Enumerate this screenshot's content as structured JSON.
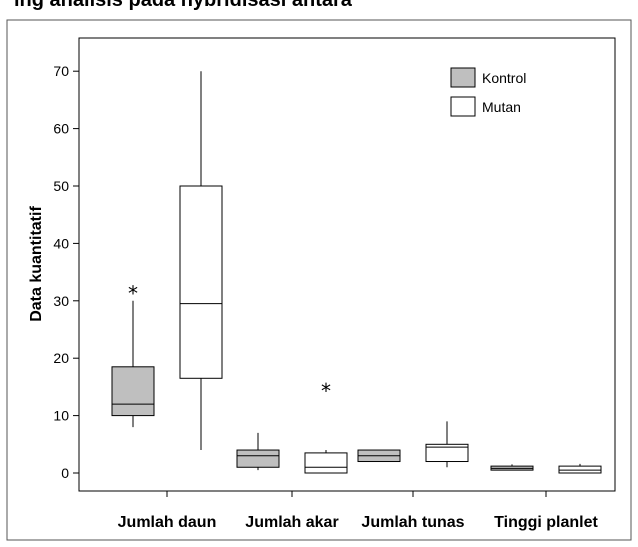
{
  "header_fragment": "ing anaiisis pada nybridisasi antara",
  "colors": {
    "kontrol_fill": "#bfbfbf",
    "mutan_fill": "#ffffff",
    "stroke": "#000000",
    "frame": "#555555"
  },
  "chart_data": {
    "type": "box",
    "ylabel": "Data kuantitatif",
    "xlabel": "",
    "ylim": [
      -1.5,
      72
    ],
    "yticks": [
      0,
      10,
      20,
      30,
      40,
      50,
      60,
      70
    ],
    "categories": [
      "Jumlah daun",
      "Jumlah akar",
      "Jumlah tunas",
      "Tinggi planlet"
    ],
    "legend_position": "top-right",
    "grid": false,
    "series": [
      {
        "name": "Kontrol",
        "boxes": [
          {
            "min": 8,
            "q1": 10,
            "median": 12,
            "q3": 18.5,
            "max": 30,
            "outliers": [
              32
            ]
          },
          {
            "min": 0.5,
            "q1": 1,
            "median": 3,
            "q3": 4,
            "max": 7,
            "outliers": []
          },
          {
            "min": 2,
            "q1": 2,
            "median": 3,
            "q3": 4,
            "max": 4,
            "outliers": []
          },
          {
            "min": 0.5,
            "q1": 0.5,
            "median": 0.8,
            "q3": 1.2,
            "max": 1.5,
            "outliers": []
          }
        ]
      },
      {
        "name": "Mutan",
        "boxes": [
          {
            "min": 4,
            "q1": 16.5,
            "median": 29.5,
            "q3": 50,
            "max": 70,
            "outliers": []
          },
          {
            "min": 0,
            "q1": 0,
            "median": 1,
            "q3": 3.5,
            "max": 4,
            "outliers": [
              15
            ]
          },
          {
            "min": 1,
            "q1": 2,
            "median": 4.5,
            "q3": 5,
            "max": 9,
            "outliers": []
          },
          {
            "min": 0,
            "q1": 0,
            "median": 0.5,
            "q3": 1.2,
            "max": 1.6,
            "outliers": []
          }
        ]
      }
    ]
  }
}
